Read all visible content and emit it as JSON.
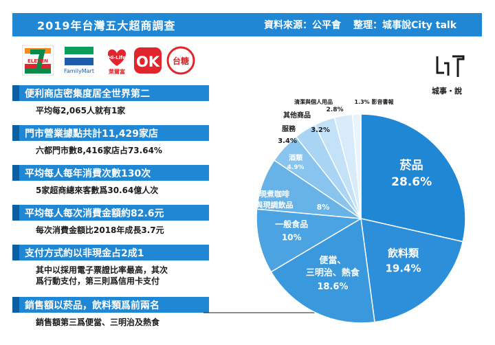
{
  "header": {
    "title": "2019年台灣五大超商調查",
    "source": "資料來源：公平會",
    "editor": "整理：城事說City talk"
  },
  "logos": [
    {
      "name": "7-eleven",
      "label": "ELEVEN"
    },
    {
      "name": "familymart",
      "label": "FamilyMart"
    },
    {
      "name": "hi-life",
      "label": "Hi-Life",
      "sublabel": "萊爾富"
    },
    {
      "name": "ok-mart",
      "label": "OK"
    },
    {
      "name": "taisugar",
      "label": "台糖"
    }
  ],
  "brand": {
    "name": "城事・說"
  },
  "facts": [
    {
      "head": "便利商店密集度居全世界第二",
      "sub": [
        "平均每2,065人就有1家"
      ]
    },
    {
      "head": "門市營業據點共計11,429家店",
      "sub": [
        "六都門市數8,416家店占73.64%"
      ]
    },
    {
      "head": "平均每人每年消費次數130次",
      "sub": [
        "5家超商總來客數爲30.64億人次"
      ]
    },
    {
      "head": "平均每人每次消費金額約82.6元",
      "sub": [
        "每次消費金額比2018年成長3.7元"
      ]
    },
    {
      "head": "支付方式約以非現金占2成1",
      "sub": [
        "其中以採用電子票證比率最高，其次",
        "爲行動支付，第三則爲信用卡支付"
      ]
    },
    {
      "head": "銷售額以菸品，飲料類爲前兩名",
      "sub": [
        "銷售額第三爲便當、三明治及熱食"
      ]
    }
  ],
  "chart_data": {
    "type": "pie",
    "title": "",
    "slices": [
      {
        "label": "菸品",
        "value": 28.6,
        "value_label": "28.6%",
        "color": "#1f87d4"
      },
      {
        "label": "飲料類",
        "value": 19.4,
        "value_label": "19.4%",
        "color": "#2d8fd9"
      },
      {
        "label": "便當、三明治、熱食",
        "value": 18.6,
        "value_label": "18.6%",
        "color": "#3a98dd"
      },
      {
        "label": "一般食品",
        "value": 10,
        "value_label": "10%",
        "color": "#4ca3e2"
      },
      {
        "label": "現煮咖啡與現調飲品",
        "value": 8,
        "value_label": "8%",
        "color": "#67b2e7"
      },
      {
        "label": "酒類",
        "value": 4.9,
        "value_label": "4.9%",
        "color": "#88c4ee"
      },
      {
        "label": "服務",
        "value": 3.4,
        "value_label": "3.4%",
        "color": "#a9d4f3"
      },
      {
        "label": "其他商品",
        "value": 3.2,
        "value_label": "3.2%",
        "color": "#c3e1f7"
      },
      {
        "label": "清潔與個人用品",
        "value": 2.8,
        "value_label": "2.8%",
        "color": "#d8ebfa"
      },
      {
        "label": "影音書報",
        "value": 1.3,
        "value_label": "1.3%",
        "color": "#e9f4fc"
      }
    ]
  }
}
